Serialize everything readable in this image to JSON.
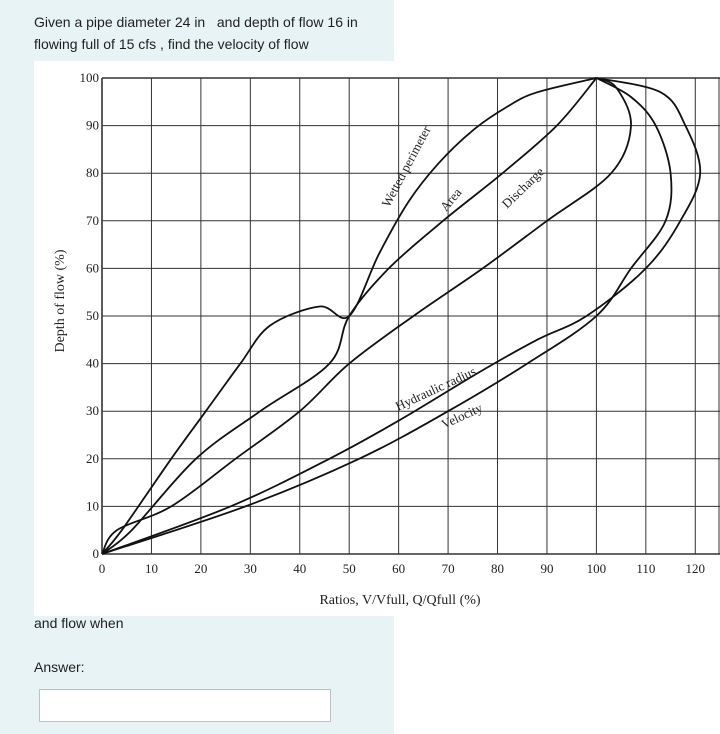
{
  "question": {
    "text": "Given a pipe diameter 24 in   and depth of flow 16 in   flowing full of 15 cfs , find the velocity of flow",
    "followup": "and  flow when",
    "answer_label": "Answer:",
    "answer_value": ""
  },
  "chart_data": {
    "type": "line",
    "title": "",
    "xlabel": "Ratios, V/Vfull, Q/Qfull (%)",
    "ylabel": "Depth of flow (%)",
    "xlim": [
      0,
      125
    ],
    "ylim": [
      0,
      100
    ],
    "x_ticks": [
      "0",
      "10",
      "20",
      "30",
      "40",
      "50",
      "60",
      "70",
      "80",
      "90",
      "100",
      "110",
      "120"
    ],
    "y_ticks": [
      "0",
      "10",
      "20",
      "30",
      "40",
      "50",
      "60",
      "70",
      "80",
      "90",
      "100"
    ],
    "grid": true,
    "series": [
      {
        "name": "Wetted perimeter",
        "x": [
          0,
          4,
          14,
          21,
          28,
          34,
          44,
          50,
          56,
          62,
          68,
          75,
          82,
          88,
          100
        ],
        "y": [
          0,
          5,
          20,
          30,
          40,
          48,
          52,
          50,
          63,
          74,
          82,
          89,
          94,
          97,
          100
        ]
      },
      {
        "name": "Area",
        "x": [
          0,
          6,
          19,
          32,
          46,
          50,
          58,
          69,
          81,
          92,
          100
        ],
        "y": [
          0,
          5,
          20,
          30,
          40,
          50,
          60,
          70,
          80,
          90,
          100
        ]
      },
      {
        "name": "Discharge",
        "x": [
          0,
          3,
          14,
          27,
          40,
          50,
          63,
          77,
          90,
          103,
          107,
          104,
          100
        ],
        "y": [
          0,
          5,
          10,
          20,
          30,
          40,
          50,
          60,
          70,
          80,
          90,
          98,
          100
        ]
      },
      {
        "name": "Hydraulic radius",
        "x": [
          0,
          26,
          46,
          60,
          76,
          88,
          98,
          110,
          117,
          121,
          118,
          113,
          100
        ],
        "y": [
          0,
          10,
          20,
          28,
          38,
          45,
          50,
          60,
          70,
          80,
          90,
          97,
          100
        ]
      },
      {
        "name": "Velocity",
        "x": [
          0,
          29,
          52,
          70,
          86,
          100,
          107,
          114,
          115,
          112,
          107,
          100
        ],
        "y": [
          0,
          10,
          20,
          30,
          40,
          50,
          60,
          70,
          80,
          90,
          96,
          100
        ]
      }
    ],
    "labels": {
      "wetted": "Wetted perimeter",
      "area": "Area",
      "discharge": "Discharge",
      "hydraulic": "Hydraulic radius",
      "velocity": "Velocity"
    }
  }
}
